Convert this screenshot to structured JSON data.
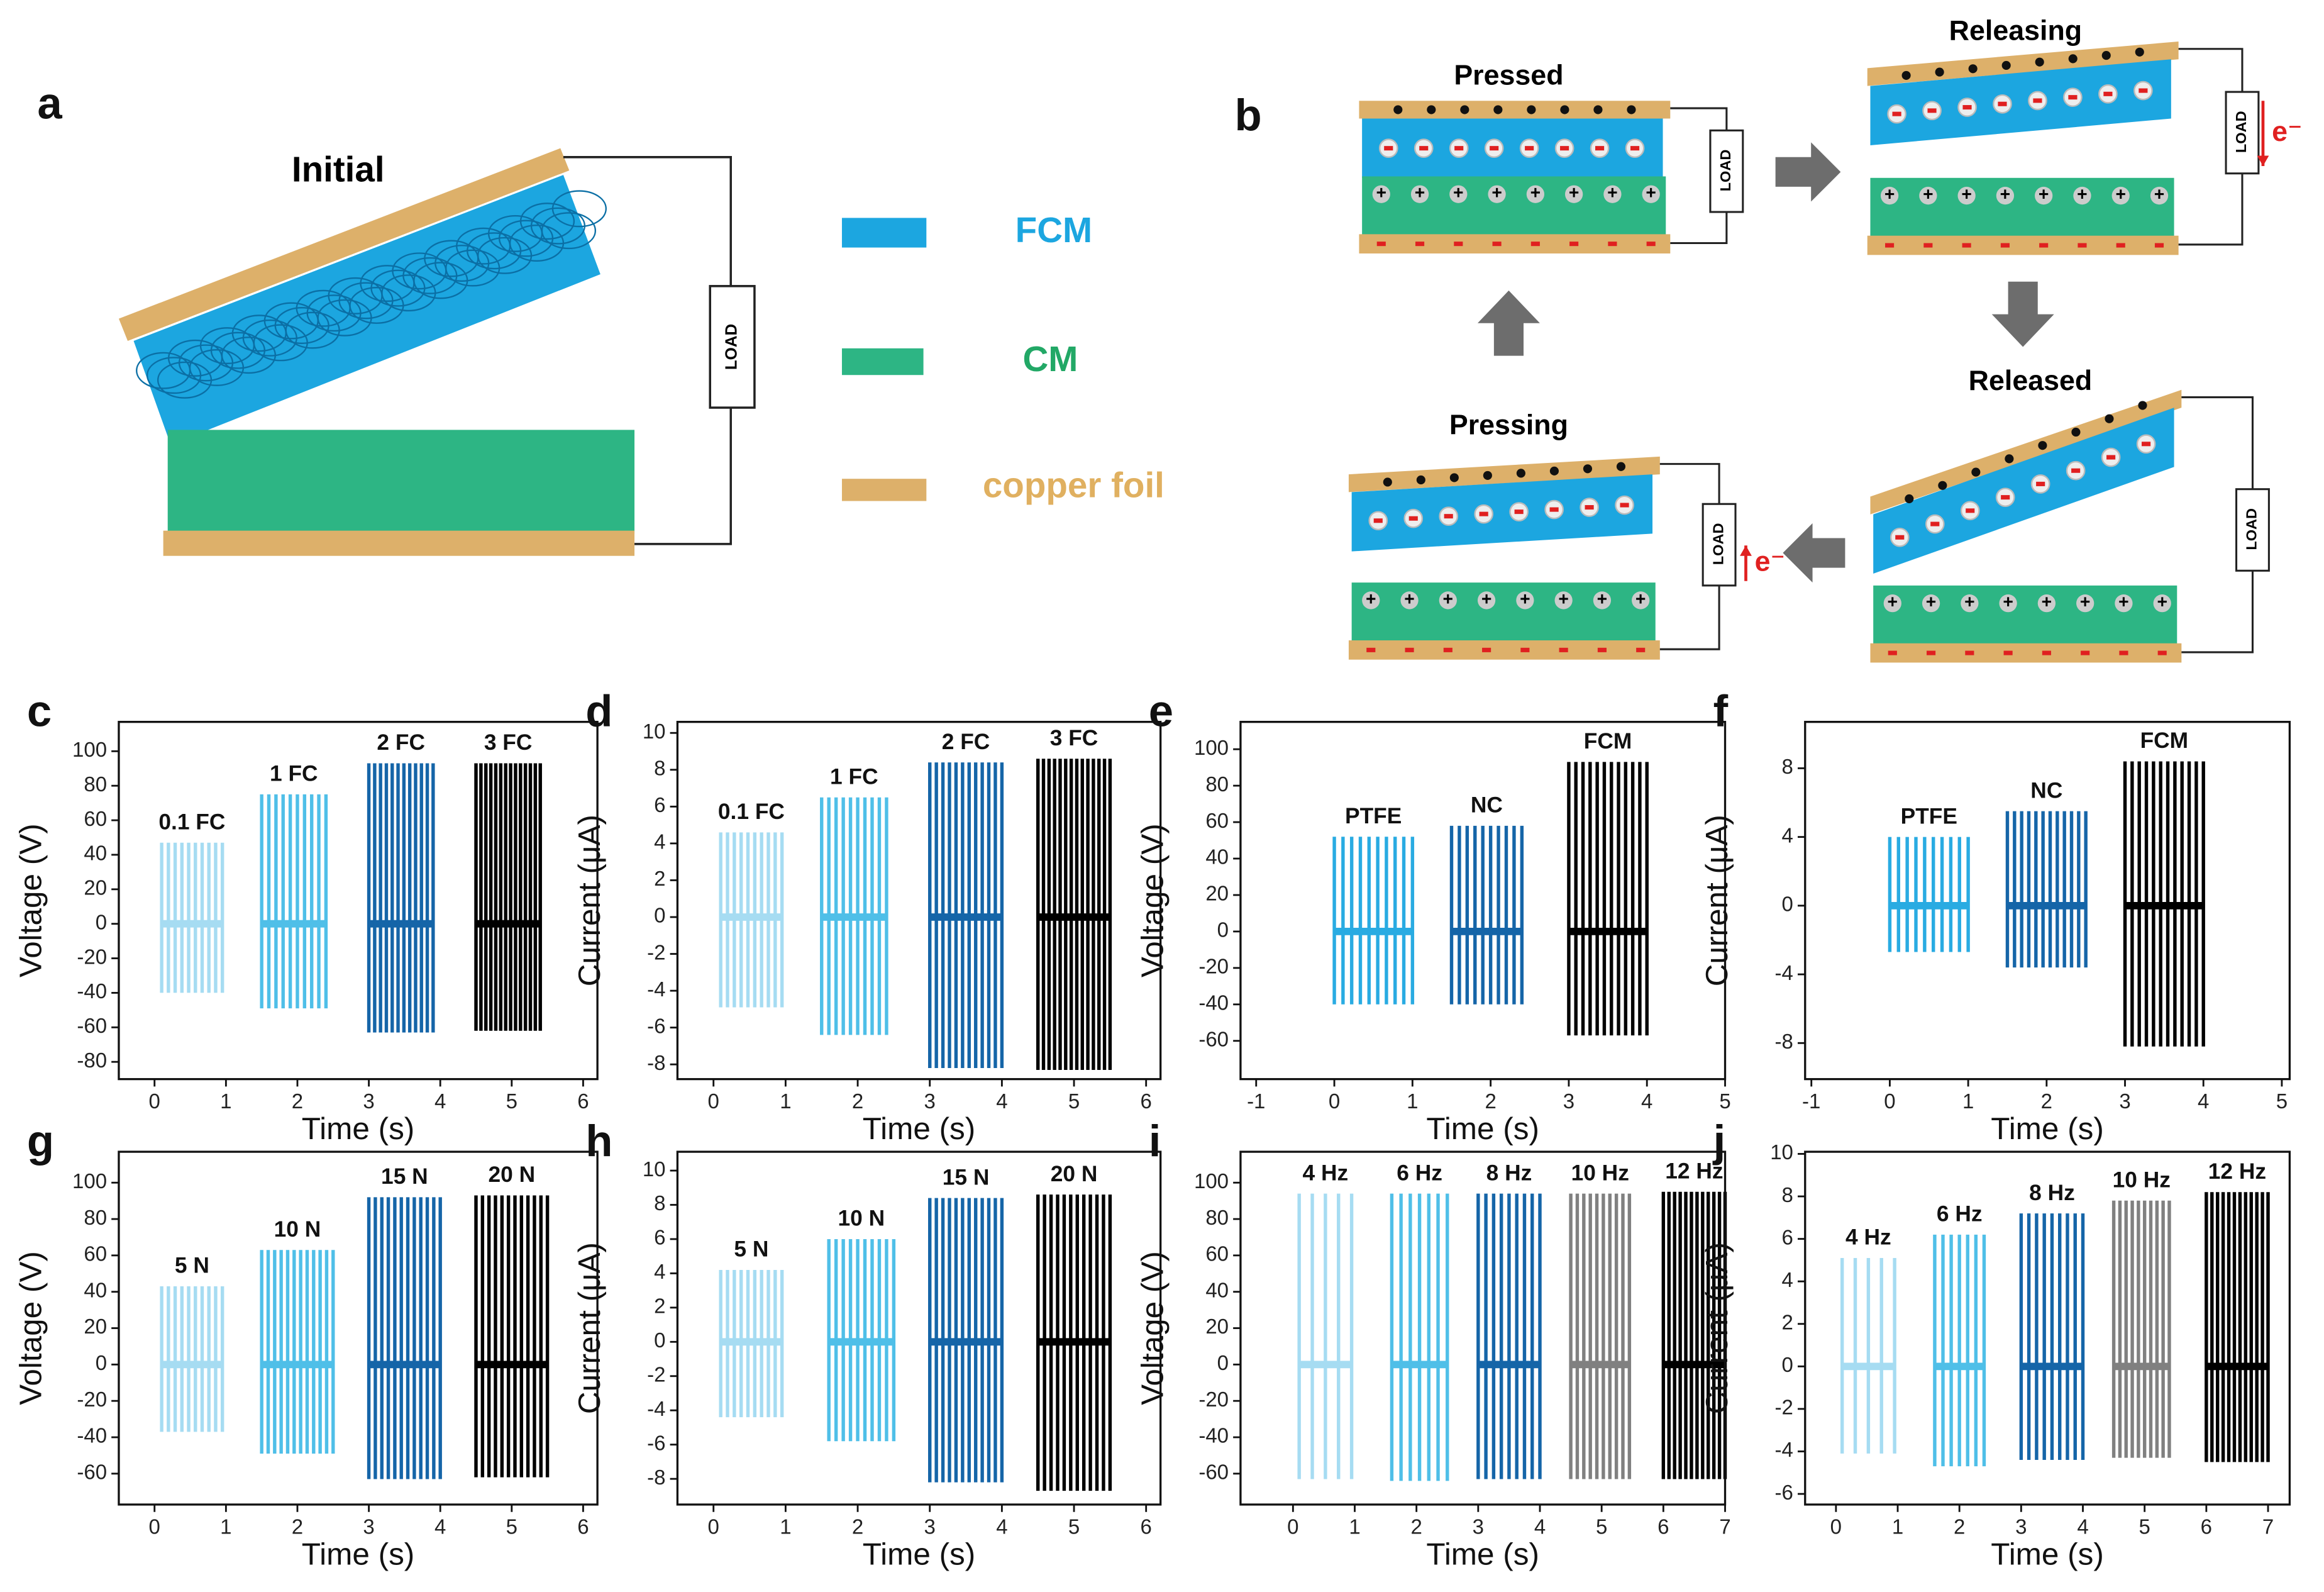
{
  "diagram": {
    "panel_a": {
      "label": "a",
      "title": "Initial",
      "load": "LOAD",
      "legend": [
        "FCM",
        "CM",
        "copper foil"
      ]
    },
    "panel_b": {
      "label": "b",
      "states": [
        "Pressed",
        "Releasing",
        "Released",
        "Pressing"
      ],
      "load": "LOAD",
      "electron": "e⁻"
    }
  },
  "chart_data": [
    {
      "type": "line",
      "panel": "c",
      "xlabel": "Time (s)",
      "ylabel": "Voltage (V)",
      "xlim": [
        -0.5,
        6.2
      ],
      "ylim": [
        -90,
        117
      ],
      "xticks": [
        0,
        1,
        2,
        3,
        4,
        5,
        6
      ],
      "yticks": [
        -80,
        -60,
        -40,
        -20,
        0,
        20,
        40,
        60,
        80,
        100
      ],
      "series": [
        {
          "name": "0.1 FC",
          "color": "#a6dcf2",
          "xrange": [
            0.1,
            0.95
          ],
          "peak": 47,
          "trough": -40,
          "count": 10
        },
        {
          "name": "1 FC",
          "color": "#4fbfe8",
          "xrange": [
            1.5,
            2.4
          ],
          "peak": 75,
          "trough": -49,
          "count": 10
        },
        {
          "name": "2 FC",
          "color": "#1565a8",
          "xrange": [
            3.0,
            3.9
          ],
          "peak": 93,
          "trough": -63,
          "count": 12
        },
        {
          "name": "3 FC",
          "color": "#000000",
          "xrange": [
            4.5,
            5.4
          ],
          "peak": 93,
          "trough": -62,
          "count": 14
        }
      ]
    },
    {
      "type": "line",
      "panel": "d",
      "xlabel": "Time (s)",
      "ylabel": "Current (μA)",
      "xlim": [
        -0.5,
        6.2
      ],
      "ylim": [
        -8.8,
        10.6
      ],
      "xticks": [
        0,
        1,
        2,
        3,
        4,
        5,
        6
      ],
      "yticks": [
        -8,
        -6,
        -4,
        -2,
        0,
        2,
        4,
        6,
        8,
        10
      ],
      "series": [
        {
          "name": "0.1 FC",
          "color": "#a6dcf2",
          "xrange": [
            0.1,
            0.95
          ],
          "peak": 4.6,
          "trough": -4.9,
          "count": 10
        },
        {
          "name": "1 FC",
          "color": "#4fbfe8",
          "xrange": [
            1.5,
            2.4
          ],
          "peak": 6.5,
          "trough": -6.4,
          "count": 10
        },
        {
          "name": "2 FC",
          "color": "#1565a8",
          "xrange": [
            3.0,
            4.0
          ],
          "peak": 8.4,
          "trough": -8.2,
          "count": 12
        },
        {
          "name": "3 FC",
          "color": "#000000",
          "xrange": [
            4.5,
            5.5
          ],
          "peak": 8.6,
          "trough": -8.3,
          "count": 14
        }
      ]
    },
    {
      "type": "line",
      "panel": "e",
      "xlabel": "Time (s)",
      "ylabel": "Voltage (V)",
      "xlim": [
        -1.2,
        5
      ],
      "ylim": [
        -81,
        115
      ],
      "xticks": [
        -1,
        0,
        1,
        2,
        3,
        4,
        5
      ],
      "yticks": [
        -60,
        -40,
        -20,
        0,
        20,
        40,
        60,
        80,
        100
      ],
      "series": [
        {
          "name": "PTFE",
          "color": "#29abe2",
          "xrange": [
            0.0,
            1.0
          ],
          "peak": 52,
          "trough": -40,
          "count": 10
        },
        {
          "name": "NC",
          "color": "#1565a8",
          "xrange": [
            1.5,
            2.4
          ],
          "peak": 58,
          "trough": -40,
          "count": 10
        },
        {
          "name": "FCM",
          "color": "#000000",
          "xrange": [
            3.0,
            4.0
          ],
          "peak": 93,
          "trough": -57,
          "count": 12
        }
      ]
    },
    {
      "type": "line",
      "panel": "f",
      "xlabel": "Time (s)",
      "ylabel": "Current (μA)",
      "xlim": [
        -1.08,
        5.1
      ],
      "ylim": [
        -10.1,
        10.7
      ],
      "xticks": [
        -1,
        0,
        1,
        2,
        3,
        4,
        5
      ],
      "yticks": [
        -8,
        -4,
        0,
        4,
        8
      ],
      "series": [
        {
          "name": "PTFE",
          "color": "#29abe2",
          "xrange": [
            0.0,
            1.0
          ],
          "peak": 4,
          "trough": -2.7,
          "count": 10
        },
        {
          "name": "NC",
          "color": "#1565a8",
          "xrange": [
            1.5,
            2.5
          ],
          "peak": 5.5,
          "trough": -3.6,
          "count": 12
        },
        {
          "name": "FCM",
          "color": "#000000",
          "xrange": [
            3.0,
            4.0
          ],
          "peak": 8.4,
          "trough": -8.2,
          "count": 12
        }
      ]
    },
    {
      "type": "line",
      "panel": "g",
      "xlabel": "Time (s)",
      "ylabel": "Voltage (V)",
      "xlim": [
        -0.5,
        6.2
      ],
      "ylim": [
        -77,
        117
      ],
      "xticks": [
        0,
        1,
        2,
        3,
        4,
        5,
        6
      ],
      "yticks": [
        -60,
        -40,
        -20,
        0,
        20,
        40,
        60,
        80,
        100
      ],
      "series": [
        {
          "name": "5 N",
          "color": "#a6dcf2",
          "xrange": [
            0.1,
            0.95
          ],
          "peak": 43,
          "trough": -37,
          "count": 10
        },
        {
          "name": "10 N",
          "color": "#4fbfe8",
          "xrange": [
            1.5,
            2.5
          ],
          "peak": 63,
          "trough": -49,
          "count": 12
        },
        {
          "name": "15 N",
          "color": "#1565a8",
          "xrange": [
            3.0,
            4.0
          ],
          "peak": 92,
          "trough": -63,
          "count": 12
        },
        {
          "name": "20 N",
          "color": "#000000",
          "xrange": [
            4.5,
            5.5
          ],
          "peak": 93,
          "trough": -62,
          "count": 12
        }
      ]
    },
    {
      "type": "line",
      "panel": "h",
      "xlabel": "Time (s)",
      "ylabel": "Current (μA)",
      "xlim": [
        -0.5,
        6.2
      ],
      "ylim": [
        -9.5,
        11.1
      ],
      "xticks": [
        0,
        1,
        2,
        3,
        4,
        5,
        6
      ],
      "yticks": [
        -8,
        -6,
        -4,
        -2,
        0,
        2,
        4,
        6,
        8,
        10
      ],
      "series": [
        {
          "name": "5 N",
          "color": "#a6dcf2",
          "xrange": [
            0.1,
            0.95
          ],
          "peak": 4.2,
          "trough": -4.4,
          "count": 10
        },
        {
          "name": "10 N",
          "color": "#4fbfe8",
          "xrange": [
            1.6,
            2.5
          ],
          "peak": 6,
          "trough": -5.8,
          "count": 10
        },
        {
          "name": "15 N",
          "color": "#1565a8",
          "xrange": [
            3.0,
            4.0
          ],
          "peak": 8.4,
          "trough": -8.2,
          "count": 12
        },
        {
          "name": "20 N",
          "color": "#000000",
          "xrange": [
            4.5,
            5.5
          ],
          "peak": 8.6,
          "trough": -8.7,
          "count": 12
        }
      ]
    },
    {
      "type": "line",
      "panel": "i",
      "xlabel": "Time (s)",
      "ylabel": "Voltage (V)",
      "xlim": [
        -0.85,
        7
      ],
      "ylim": [
        -77,
        117
      ],
      "xticks": [
        0,
        1,
        2,
        3,
        4,
        5,
        6,
        7
      ],
      "yticks": [
        -60,
        -40,
        -20,
        0,
        20,
        40,
        60,
        80,
        100
      ],
      "series": [
        {
          "name": "4 Hz",
          "color": "#a6dcf2",
          "xrange": [
            0.1,
            0.95
          ],
          "peak": 94,
          "trough": -63,
          "count": 5
        },
        {
          "name": "6 Hz",
          "color": "#4fbfe8",
          "xrange": [
            1.6,
            2.5
          ],
          "peak": 94,
          "trough": -64,
          "count": 7
        },
        {
          "name": "8 Hz",
          "color": "#1565a8",
          "xrange": [
            3.0,
            4.0
          ],
          "peak": 94,
          "trough": -63,
          "count": 9
        },
        {
          "name": "10 Hz",
          "color": "#808080",
          "xrange": [
            4.5,
            5.45
          ],
          "peak": 94,
          "trough": -63,
          "count": 10
        },
        {
          "name": "12 Hz",
          "color": "#000000",
          "xrange": [
            6.0,
            7.0
          ],
          "peak": 95,
          "trough": -63,
          "count": 12
        }
      ]
    },
    {
      "type": "line",
      "panel": "j",
      "xlabel": "Time (s)",
      "ylabel": "Current (μA)",
      "xlim": [
        -0.5,
        7.35
      ],
      "ylim": [
        -6.5,
        10.1
      ],
      "xticks": [
        0,
        1,
        2,
        3,
        4,
        5,
        6,
        7
      ],
      "yticks": [
        -6,
        -4,
        -2,
        0,
        2,
        4,
        6,
        8,
        10
      ],
      "series": [
        {
          "name": "4 Hz",
          "color": "#a6dcf2",
          "xrange": [
            0.1,
            0.95
          ],
          "peak": 5.1,
          "trough": -4.1,
          "count": 5
        },
        {
          "name": "6 Hz",
          "color": "#4fbfe8",
          "xrange": [
            1.6,
            2.4
          ],
          "peak": 6.2,
          "trough": -4.7,
          "count": 7
        },
        {
          "name": "8 Hz",
          "color": "#1565a8",
          "xrange": [
            3.0,
            4.0
          ],
          "peak": 7.2,
          "trough": -4.4,
          "count": 9
        },
        {
          "name": "10 Hz",
          "color": "#808080",
          "xrange": [
            4.5,
            5.4
          ],
          "peak": 7.8,
          "trough": -4.3,
          "count": 10
        },
        {
          "name": "12 Hz",
          "color": "#000000",
          "xrange": [
            6.0,
            7.0
          ],
          "peak": 8.2,
          "trough": -4.5,
          "count": 12
        }
      ]
    }
  ]
}
